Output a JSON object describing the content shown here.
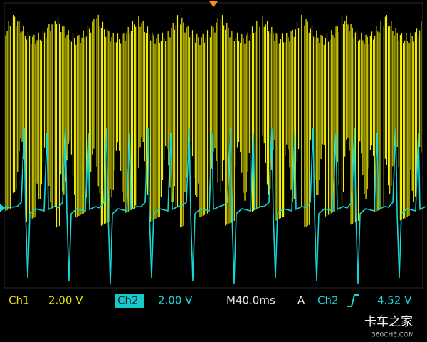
{
  "status_bar": {
    "ch1_label": "Ch1",
    "ch1_scale": "2.00 V",
    "ch2_label": "Ch2",
    "ch2_scale": "2.00 V",
    "timebase": "M40.0ms",
    "trigger_mode": "A",
    "trigger_source": "Ch2",
    "trigger_level": "4.52 V"
  },
  "watermark": {
    "brand": "卡车之家",
    "site": "360CHE.COM"
  }
}
